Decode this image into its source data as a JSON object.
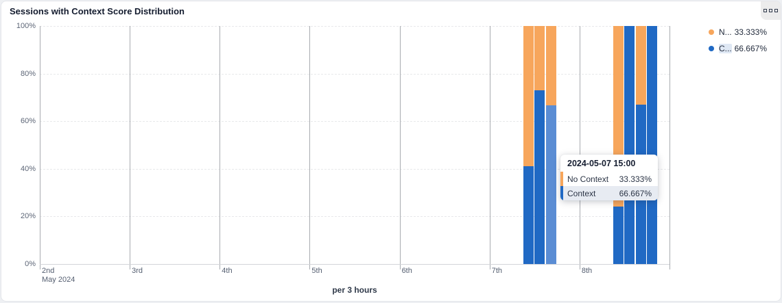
{
  "panel": {
    "title": "Sessions with Context Score Distribution",
    "menu_icon": "three-squares-icon"
  },
  "legend": {
    "items": [
      {
        "label": "N...",
        "value": "33.333%",
        "color": "#f7a65c",
        "highlighted": false
      },
      {
        "label": "C...",
        "value": "66.667%",
        "color": "#2069c4",
        "highlighted": true
      }
    ]
  },
  "tooltip": {
    "title": "2024-05-07 15:00",
    "rows": [
      {
        "label": "No Context",
        "value": "33.333%",
        "color": "#f7a65c",
        "highlighted": false
      },
      {
        "label": "Context",
        "value": "66.667%",
        "color": "#2069c4",
        "highlighted": true
      }
    ]
  },
  "chart_data": {
    "type": "bar",
    "stacked": true,
    "title": "Sessions with Context Score Distribution",
    "xlabel": "per 3 hours",
    "ylabel": "",
    "ylim": [
      0,
      100
    ],
    "y_ticks": [
      "0%",
      "20%",
      "40%",
      "60%",
      "80%",
      "100%"
    ],
    "x_ticks": [
      "2nd",
      "3rd",
      "4th",
      "5th",
      "6th",
      "7th",
      "8th"
    ],
    "x_month_label": "May 2024",
    "legend_position": "top-right",
    "grid": "horizontal-dashed-vertical-solid",
    "series": [
      {
        "name": "Context",
        "color": "#2069c4",
        "highlight_color": "#5b8dd4"
      },
      {
        "name": "No Context",
        "color": "#f7a65c"
      }
    ],
    "bars": [
      {
        "time": "2024-05-07 09:00",
        "day": 7,
        "hour": 9,
        "context": 41,
        "no_context": 59,
        "highlighted": false
      },
      {
        "time": "2024-05-07 12:00",
        "day": 7,
        "hour": 12,
        "context": 73,
        "no_context": 27,
        "highlighted": false
      },
      {
        "time": "2024-05-07 15:00",
        "day": 7,
        "hour": 15,
        "context": 66.667,
        "no_context": 33.333,
        "highlighted": true
      },
      {
        "time": "2024-05-08 09:00",
        "day": 8,
        "hour": 9,
        "context": 24,
        "no_context": 76,
        "highlighted": false
      },
      {
        "time": "2024-05-08 12:00",
        "day": 8,
        "hour": 12,
        "context": 100,
        "no_context": 0,
        "highlighted": false
      },
      {
        "time": "2024-05-08 15:00",
        "day": 8,
        "hour": 15,
        "context": 67,
        "no_context": 33,
        "highlighted": false
      },
      {
        "time": "2024-05-08 18:00",
        "day": 8,
        "hour": 18,
        "context": 100,
        "no_context": 0,
        "highlighted": false
      }
    ]
  }
}
